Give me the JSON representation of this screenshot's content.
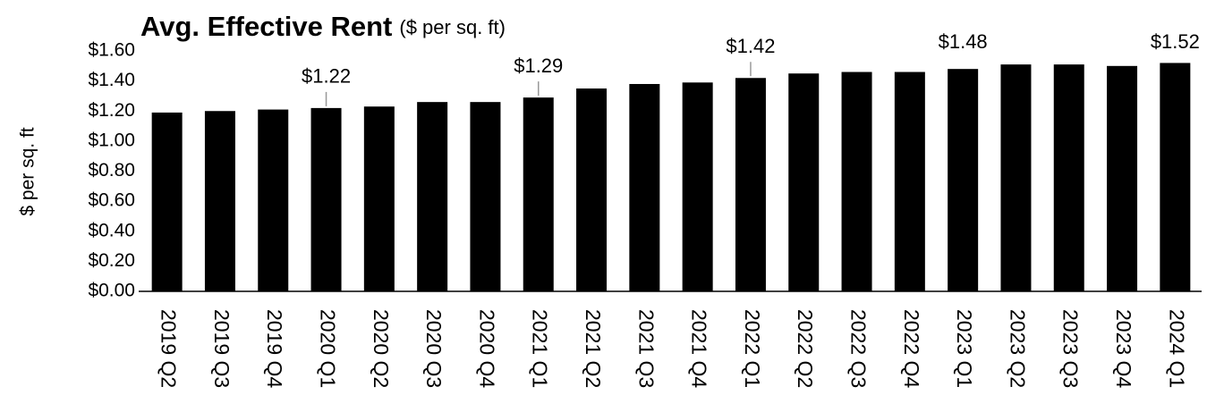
{
  "chart_data": {
    "type": "bar",
    "title": "Avg. Effective Rent",
    "subtitle": "($ per sq. ft)",
    "y_label": "$ per sq. ft",
    "categories": [
      "2019 Q2",
      "2019 Q3",
      "2019 Q4",
      "2020 Q1",
      "2020 Q2",
      "2020 Q3",
      "2020 Q4",
      "2021 Q1",
      "2021 Q2",
      "2021 Q3",
      "2021 Q4",
      "2022 Q1",
      "2022 Q2",
      "2022 Q3",
      "2022 Q4",
      "2023 Q1",
      "2023 Q2",
      "2023 Q3",
      "2023 Q4",
      "2024 Q1"
    ],
    "values": [
      1.19,
      1.2,
      1.21,
      1.22,
      1.23,
      1.26,
      1.26,
      1.29,
      1.35,
      1.38,
      1.39,
      1.42,
      1.45,
      1.46,
      1.46,
      1.48,
      1.51,
      1.51,
      1.5,
      1.52
    ],
    "value_labels": [
      null,
      null,
      null,
      "$1.22",
      null,
      null,
      null,
      "$1.29",
      null,
      null,
      null,
      "$1.42",
      null,
      null,
      null,
      "$1.48",
      null,
      null,
      null,
      "$1.52"
    ],
    "color": "#000000",
    "ylim": [
      0,
      1.6
    ],
    "yticks": [
      {
        "value": 0,
        "label": "$0.00"
      },
      {
        "value": 0.2,
        "label": "$0.20"
      },
      {
        "value": 0.4,
        "label": "$0.40"
      },
      {
        "value": 0.6,
        "label": "$0.60"
      },
      {
        "value": 0.8,
        "label": "$0.80"
      },
      {
        "value": 1.0,
        "label": "$1.00"
      },
      {
        "value": 1.2,
        "label": "$1.20"
      },
      {
        "value": 1.4,
        "label": "$1.40"
      },
      {
        "value": 1.6,
        "label": "$1.60"
      }
    ],
    "grid": false
  }
}
